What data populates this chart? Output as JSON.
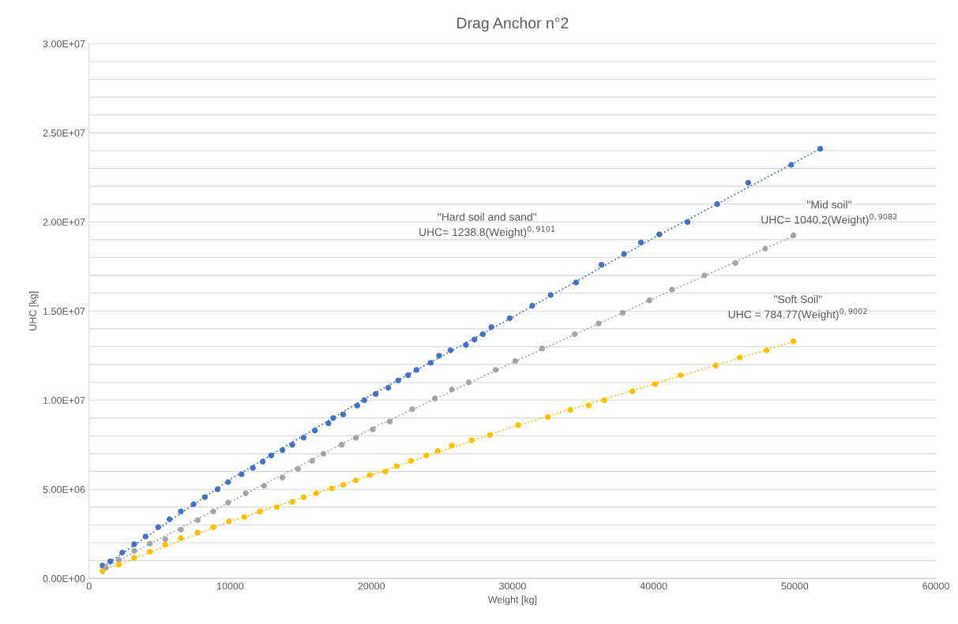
{
  "chart_data": {
    "type": "scatter",
    "title": "Drag Anchor n°2",
    "xlabel": "Weight [kg]",
    "ylabel": "UHC [kg]",
    "xlim": [
      0,
      60000
    ],
    "xticks": [
      0,
      10000,
      20000,
      30000,
      40000,
      50000,
      60000
    ],
    "ylim": [
      0,
      30000000
    ],
    "yticks": [
      {
        "value": 0,
        "label": "0.00E+00"
      },
      {
        "value": 1000000,
        "label": null
      },
      {
        "value": 2000000,
        "label": null
      },
      {
        "value": 3000000,
        "label": null
      },
      {
        "value": 4000000,
        "label": null
      },
      {
        "value": 5000000,
        "label": "5.00E+06"
      },
      {
        "value": 6000000,
        "label": null
      },
      {
        "value": 7000000,
        "label": null
      },
      {
        "value": 8000000,
        "label": null
      },
      {
        "value": 9000000,
        "label": null
      },
      {
        "value": 10000000,
        "label": "1.00E+07"
      },
      {
        "value": 11000000,
        "label": null
      },
      {
        "value": 12000000,
        "label": null
      },
      {
        "value": 13000000,
        "label": null
      },
      {
        "value": 14000000,
        "label": null
      },
      {
        "value": 15000000,
        "label": "1.50E+07"
      },
      {
        "value": 16000000,
        "label": null
      },
      {
        "value": 17000000,
        "label": null
      },
      {
        "value": 18000000,
        "label": null
      },
      {
        "value": 19000000,
        "label": null
      },
      {
        "value": 20000000,
        "label": "2.00E+07"
      },
      {
        "value": 21000000,
        "label": null
      },
      {
        "value": 22000000,
        "label": null
      },
      {
        "value": 23000000,
        "label": null
      },
      {
        "value": 24000000,
        "label": null
      },
      {
        "value": 25000000,
        "label": "2.50E+07"
      },
      {
        "value": 26000000,
        "label": null
      },
      {
        "value": 27000000,
        "label": null
      },
      {
        "value": 28000000,
        "label": null
      },
      {
        "value": 29000000,
        "label": null
      },
      {
        "value": 30000000,
        "label": "3.00E+07"
      }
    ],
    "grid": "y",
    "marker": "circle",
    "series": [
      {
        "color": "#4472c4",
        "x": [
          950,
          1500,
          2350,
          3200,
          4000,
          4900,
          5700,
          6500,
          7400,
          8200,
          9100,
          9850,
          10800,
          11600,
          12300,
          12900,
          13700,
          14400,
          15200,
          16000,
          16960,
          17300,
          18000,
          19000,
          19500,
          20300,
          21200,
          21900,
          22600,
          23200,
          24200,
          24800,
          25600,
          26700,
          27300,
          27900,
          28500,
          29800,
          31400,
          32700,
          34500,
          36300,
          37900,
          39100,
          40400,
          42400,
          44500,
          46700,
          49750,
          51800
        ],
        "values": [
          720000,
          960000,
          1450000,
          1920000,
          2350000,
          2880000,
          3320000,
          3760000,
          4160000,
          4560000,
          5000000,
          5400000,
          5850000,
          6200000,
          6550000,
          6900000,
          7200000,
          7500000,
          7900000,
          8300000,
          8700000,
          9000000,
          9200000,
          9700000,
          10000000,
          10350000,
          10700000,
          11100000,
          11400000,
          11700000,
          12100000,
          12500000,
          12800000,
          13100000,
          13400000,
          13700000,
          14100000,
          14600000,
          15300000,
          15900000,
          16600000,
          17600000,
          18200000,
          18850000,
          19300000,
          20000000,
          21000000,
          22200000,
          23200000,
          24100000
        ]
      },
      {
        "color": "#a5a5a5",
        "x": [
          1200,
          2100,
          3200,
          4300,
          5400,
          6500,
          7700,
          8800,
          9850,
          11100,
          12400,
          13700,
          14800,
          15800,
          16600,
          17900,
          18900,
          20100,
          21300,
          22900,
          24500,
          25700,
          26900,
          28800,
          30200,
          32100,
          34400,
          36100,
          37800,
          39700,
          41300,
          43600,
          45800,
          47900,
          49900
        ],
        "values": [
          600000,
          1050000,
          1550000,
          1950000,
          2210000,
          2740000,
          3270000,
          3760000,
          4250000,
          4780000,
          5200000,
          5660000,
          6150000,
          6600000,
          7000000,
          7500000,
          7880000,
          8360000,
          8800000,
          9500000,
          10100000,
          10600000,
          11000000,
          11700000,
          12200000,
          12900000,
          13700000,
          14300000,
          14900000,
          15600000,
          16200000,
          17000000,
          17700000,
          18500000,
          19250000
        ]
      },
      {
        "color": "#ffc000",
        "x": [
          950,
          2100,
          3200,
          4300,
          5400,
          6500,
          7700,
          8800,
          9900,
          11000,
          12100,
          13300,
          14400,
          15200,
          16100,
          17200,
          18000,
          18900,
          19900,
          21000,
          21800,
          22800,
          23900,
          24700,
          25700,
          27100,
          28400,
          30400,
          32500,
          34100,
          35400,
          36500,
          38500,
          40100,
          41900,
          44400,
          46100,
          48000,
          49900
        ],
        "values": [
          400000,
          770000,
          1150000,
          1500000,
          1900000,
          2260000,
          2570000,
          2880000,
          3200000,
          3450000,
          3760000,
          4000000,
          4300000,
          4560000,
          4780000,
          5050000,
          5250000,
          5500000,
          5800000,
          6000000,
          6300000,
          6600000,
          6900000,
          7150000,
          7450000,
          7750000,
          8050000,
          8600000,
          9050000,
          9450000,
          9700000,
          10000000,
          10500000,
          10900000,
          11400000,
          11950000,
          12400000,
          12800000,
          13300000
        ]
      },
      {
        "type": "line",
        "color": "#4472c4",
        "line_style": "dotted",
        "marker": "none",
        "x": [
          1000,
          10000,
          20000,
          30000,
          40000,
          51800
        ],
        "values": [
          670000,
          5550000,
          10300000,
          14650000,
          19100000,
          24100000
        ]
      },
      {
        "type": "line",
        "color": "#a5a5a5",
        "line_style": "dotted",
        "marker": "none",
        "x": [
          1000,
          10000,
          20000,
          30000,
          40000,
          50000
        ],
        "values": [
          550000,
          4300000,
          8400000,
          12100000,
          15700000,
          19250000
        ]
      },
      {
        "type": "line",
        "color": "#ffc000",
        "line_style": "dotted",
        "marker": "none",
        "x": [
          1000,
          10000,
          20000,
          30000,
          40000,
          50000
        ],
        "values": [
          450000,
          3200000,
          5800000,
          8500000,
          10900000,
          13300000
        ]
      }
    ],
    "annotations": [
      "\"Hard soil and sand\"\nUHC= 1238.8(Weight)$^{0,9101}$",
      "\"Mid soil\"\nUHC= 1040.2(Weight)$^{0,9082}$",
      "\"Soft Soil\"\nUHC = 784.77(Weight)$^{0,9002}$"
    ]
  }
}
